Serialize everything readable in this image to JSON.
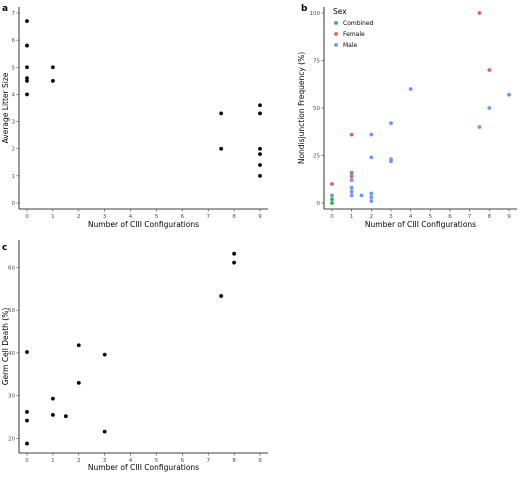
{
  "chart_data": [
    {
      "panel_label": "a",
      "type": "scatter",
      "xlabel": "Number of CIII Configurations",
      "ylabel": "Average Litter Size",
      "xlim": [
        0,
        9
      ],
      "ylim": [
        0,
        7
      ],
      "x_ticks": [
        "0",
        "1",
        "2",
        "3",
        "4",
        "5",
        "6",
        "7",
        "8",
        "9"
      ],
      "y_ticks": [
        "0",
        "1",
        "2",
        "3",
        "4",
        "5",
        "6",
        "7"
      ],
      "series": [
        {
          "color": "#000000",
          "points": [
            {
              "x": 0,
              "y": 6.7
            },
            {
              "x": 0,
              "y": 5.8
            },
            {
              "x": 0,
              "y": 5.0
            },
            {
              "x": 0,
              "y": 4.6
            },
            {
              "x": 0,
              "y": 4.5
            },
            {
              "x": 0,
              "y": 4.0
            },
            {
              "x": 1,
              "y": 5.0
            },
            {
              "x": 1,
              "y": 4.5
            },
            {
              "x": 7.5,
              "y": 3.3
            },
            {
              "x": 7.5,
              "y": 2.0
            },
            {
              "x": 9,
              "y": 3.6
            },
            {
              "x": 9,
              "y": 3.3
            },
            {
              "x": 9,
              "y": 2.0
            },
            {
              "x": 9,
              "y": 1.8
            },
            {
              "x": 9,
              "y": 1.4
            },
            {
              "x": 9,
              "y": 1.0
            }
          ]
        }
      ]
    },
    {
      "panel_label": "b",
      "type": "scatter",
      "xlabel": "Number of CIII Configurations",
      "ylabel": "Nondisjunction Frequency (%)",
      "xlim": [
        0,
        9
      ],
      "ylim": [
        0,
        100
      ],
      "x_ticks": [
        "0",
        "1",
        "2",
        "3",
        "4",
        "5",
        "6",
        "7",
        "8",
        "9"
      ],
      "y_ticks": [
        "0",
        "25",
        "50",
        "75",
        "100"
      ],
      "legend": {
        "title": "Sex",
        "placement": "top-left"
      },
      "series": [
        {
          "name": "Combined",
          "color": "#33b54a",
          "points": [
            {
              "x": 0,
              "y": 0
            },
            {
              "x": 0,
              "y": 2
            }
          ]
        },
        {
          "name": "Female",
          "color": "#e3605e",
          "points": [
            {
              "x": 0,
              "y": 10
            },
            {
              "x": 1,
              "y": 36
            },
            {
              "x": 1,
              "y": 16
            },
            {
              "x": 1,
              "y": 14
            },
            {
              "x": 7.5,
              "y": 100
            },
            {
              "x": 8,
              "y": 70
            }
          ]
        },
        {
          "name": "Male",
          "color": "#6f97ea",
          "points": [
            {
              "x": 0,
              "y": 4
            },
            {
              "x": 1,
              "y": 15
            },
            {
              "x": 1,
              "y": 12
            },
            {
              "x": 1,
              "y": 8
            },
            {
              "x": 1,
              "y": 6
            },
            {
              "x": 1,
              "y": 4
            },
            {
              "x": 1.5,
              "y": 4
            },
            {
              "x": 2,
              "y": 36
            },
            {
              "x": 2,
              "y": 24
            },
            {
              "x": 2,
              "y": 5
            },
            {
              "x": 2,
              "y": 3
            },
            {
              "x": 2,
              "y": 1
            },
            {
              "x": 3,
              "y": 42
            },
            {
              "x": 3,
              "y": 23
            },
            {
              "x": 3,
              "y": 22
            },
            {
              "x": 4,
              "y": 60
            },
            {
              "x": 7.5,
              "y": 40
            },
            {
              "x": 8,
              "y": 50
            },
            {
              "x": 9,
              "y": 57
            }
          ]
        }
      ]
    },
    {
      "panel_label": "c",
      "type": "scatter",
      "xlabel": "Number of CIII Configurations",
      "ylabel": "Germ Cell Death (%)",
      "xlim": [
        0,
        9
      ],
      "ylim": [
        18,
        65
      ],
      "x_ticks": [
        "0",
        "1",
        "2",
        "3",
        "4",
        "5",
        "6",
        "7",
        "8",
        "9"
      ],
      "y_ticks": [
        "20",
        "30",
        "40",
        "50",
        "60"
      ],
      "series": [
        {
          "color": "#000000",
          "points": [
            {
              "x": 0,
              "y": 40.2
            },
            {
              "x": 0,
              "y": 26.2
            },
            {
              "x": 0,
              "y": 24.2
            },
            {
              "x": 0,
              "y": 18.8
            },
            {
              "x": 1,
              "y": 29.3
            },
            {
              "x": 1,
              "y": 25.5
            },
            {
              "x": 1.5,
              "y": 25.2
            },
            {
              "x": 2,
              "y": 41.8
            },
            {
              "x": 2,
              "y": 33.0
            },
            {
              "x": 3,
              "y": 39.6
            },
            {
              "x": 3,
              "y": 21.6
            },
            {
              "x": 7.5,
              "y": 53.3
            },
            {
              "x": 8,
              "y": 63.2
            },
            {
              "x": 8,
              "y": 61.1
            }
          ]
        }
      ]
    }
  ]
}
